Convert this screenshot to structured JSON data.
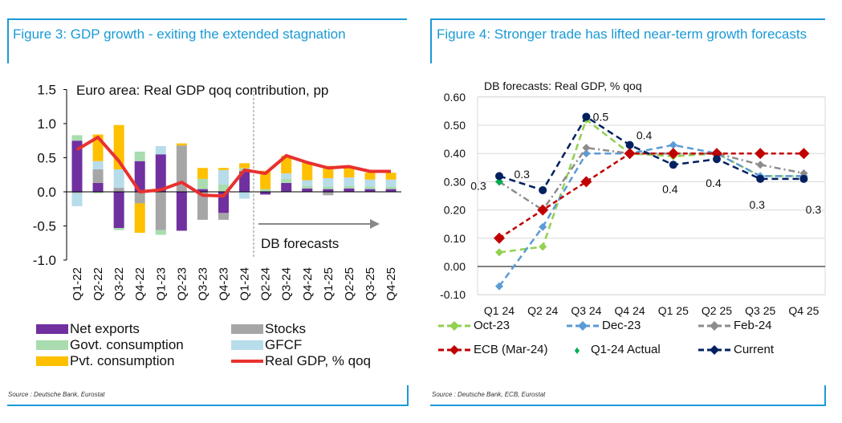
{
  "left": {
    "title": "Figure 3: GDP growth - exiting the extended stagnation",
    "source": "Source : Deutsche Bank, Eurostat",
    "chart_data": {
      "type": "bar",
      "stacked": true,
      "title": "Euro area: Real GDP qoq contribution, pp",
      "annotation": "DB forecasts",
      "ylim": [
        -1.0,
        1.5
      ],
      "yticks": [
        "-1.0",
        "-0.5",
        "0.0",
        "0.5",
        "1.0",
        "1.5"
      ],
      "categories": [
        "Q1-22",
        "Q2-22",
        "Q3-22",
        "Q4-22",
        "Q1-23",
        "Q2-23",
        "Q3-23",
        "Q4-23",
        "Q1-24",
        "Q2-24",
        "Q3-24",
        "Q4-24",
        "Q1-25",
        "Q2-25",
        "Q3-25",
        "Q4-25"
      ],
      "series": [
        {
          "name": "Net exports",
          "color": "#7030a0",
          "values": [
            0.75,
            0.13,
            -0.53,
            0.45,
            0.55,
            -0.57,
            0.04,
            -0.31,
            0.3,
            -0.04,
            0.13,
            0.05,
            0.04,
            0.05,
            0.04,
            0.04
          ]
        },
        {
          "name": "Stocks",
          "color": "#a6a6a6",
          "values": [
            -0.02,
            0.2,
            0.06,
            -0.17,
            -0.56,
            0.68,
            -0.41,
            -0.1,
            0,
            0,
            0,
            0,
            -0.05,
            0,
            0,
            0
          ]
        },
        {
          "name": "Govt. consumption",
          "color": "#a9dcae",
          "values": [
            0.08,
            -0.02,
            -0.03,
            0.14,
            -0.07,
            0,
            0.15,
            0.11,
            0.05,
            0.04,
            0.06,
            0.04,
            0.04,
            0.04,
            0.04,
            0.04
          ]
        },
        {
          "name": "GFCF",
          "color": "#b7dcea",
          "values": [
            -0.19,
            0.12,
            0.27,
            0,
            0.12,
            0,
            0,
            0.21,
            -0.1,
            0,
            0.08,
            0.08,
            0.12,
            0.12,
            0.1,
            0.1
          ]
        },
        {
          "name": "Pvt. consumption",
          "color": "#ffc000",
          "values": [
            0,
            0.39,
            0.65,
            -0.43,
            0,
            0.03,
            0.16,
            0.03,
            0.07,
            0.27,
            0.26,
            0.26,
            0.18,
            0.16,
            0.1,
            0.1
          ]
        }
      ],
      "line": {
        "name": "Real GDP, % qoq",
        "color": "#e8312f",
        "values": [
          0.62,
          0.8,
          0.45,
          0.0,
          0.03,
          0.14,
          -0.05,
          -0.06,
          0.32,
          0.27,
          0.53,
          0.43,
          0.35,
          0.37,
          0.3,
          0.3
        ]
      },
      "legend_placement": "bottom"
    }
  },
  "right": {
    "title": "Figure 4: Stronger trade has lifted near-term growth forecasts",
    "source": "Source : Deutsche Bank, ECB, Eurostat",
    "chart_data": {
      "type": "line",
      "title": "DB forecasts: Real GDP, % qoq",
      "ylim": [
        -0.1,
        0.6
      ],
      "yticks": [
        "-0.10",
        "0.00",
        "0.10",
        "0.20",
        "0.30",
        "0.40",
        "0.50",
        "0.60"
      ],
      "grid": true,
      "categories": [
        "Q1 24",
        "Q2 24",
        "Q3 24",
        "Q4 24",
        "Q1 25",
        "Q2 25",
        "Q3 25",
        "Q4 25"
      ],
      "series": [
        {
          "name": "Oct-23",
          "color": "#92d050",
          "values": [
            0.05,
            0.07,
            0.52,
            0.4,
            0.39,
            0.4,
            0.32,
            0.32
          ]
        },
        {
          "name": "Dec-23",
          "color": "#5b9bd5",
          "values": [
            -0.07,
            0.14,
            0.4,
            0.4,
            0.43,
            0.4,
            0.32,
            0.32
          ]
        },
        {
          "name": "Feb-24",
          "color": "#8c8c8c",
          "values": [
            0.3,
            0.2,
            0.42,
            0.4,
            0.4,
            0.4,
            0.36,
            0.33
          ]
        },
        {
          "name": "ECB (Mar-24)",
          "color": "#c00000",
          "values": [
            0.1,
            0.2,
            0.3,
            0.4,
            0.4,
            0.4,
            0.4,
            0.4
          ]
        },
        {
          "name": "Q1-24 Actual",
          "color": "#00b050",
          "values": [
            0.3,
            null,
            null,
            null,
            null,
            null,
            null,
            null
          ]
        },
        {
          "name": "Current",
          "color": "#002060",
          "values": [
            0.32,
            0.27,
            0.53,
            0.43,
            0.36,
            0.38,
            0.31,
            0.31
          ]
        }
      ],
      "data_labels": [
        "0.3",
        "0.3",
        "0.5",
        "0.4",
        "0.4",
        "0.4",
        "0.3",
        "0.3"
      ],
      "legend_placement": "bottom"
    }
  }
}
